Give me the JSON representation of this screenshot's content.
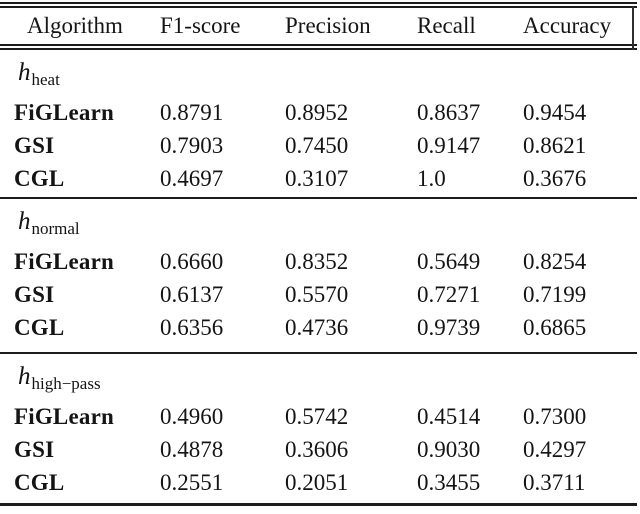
{
  "table": {
    "headers": [
      "Algorithm",
      "F1-score",
      "Precision",
      "Recall",
      "Accuracy"
    ],
    "sections": [
      {
        "label": {
          "base": "h",
          "subscript": "heat"
        },
        "rows": [
          {
            "name": "FiGLearn",
            "values": [
              "0.8791",
              "0.8952",
              "0.8637",
              "0.9454"
            ]
          },
          {
            "name": "GSI",
            "values": [
              "0.7903",
              "0.7450",
              "0.9147",
              "0.8621"
            ]
          },
          {
            "name": "CGL",
            "values": [
              "0.4697",
              "0.3107",
              "1.0",
              "0.3676"
            ]
          }
        ]
      },
      {
        "label": {
          "base": "h",
          "subscript": "normal"
        },
        "rows": [
          {
            "name": "FiGLearn",
            "values": [
              "0.6660",
              "0.8352",
              "0.5649",
              "0.8254"
            ]
          },
          {
            "name": "GSI",
            "values": [
              "0.6137",
              "0.5570",
              "0.7271",
              "0.7199"
            ]
          },
          {
            "name": "CGL",
            "values": [
              "0.6356",
              "0.4736",
              "0.9739",
              "0.6865"
            ]
          }
        ]
      },
      {
        "label": {
          "base": "h",
          "subscript": "high−pass"
        },
        "rows": [
          {
            "name": "FiGLearn",
            "values": [
              "0.4960",
              "0.5742",
              "0.4514",
              "0.7300"
            ]
          },
          {
            "name": "GSI",
            "values": [
              "0.4878",
              "0.3606",
              "0.9030",
              "0.4297"
            ]
          },
          {
            "name": "CGL",
            "values": [
              "0.2551",
              "0.2051",
              "0.3455",
              "0.3711"
            ]
          }
        ]
      }
    ]
  },
  "colors": {
    "background": "#ffffff",
    "text": "#141414",
    "rule": "#1c1c1c"
  }
}
